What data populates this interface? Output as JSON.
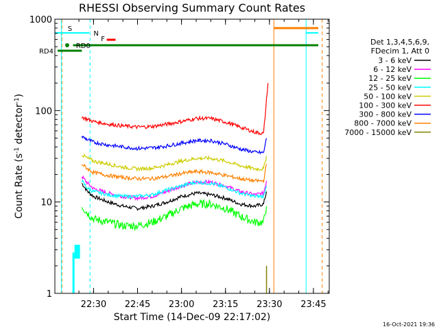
{
  "chart_data": {
    "type": "line",
    "title": "RHESSI Observing Summary Count Rates",
    "xlabel": "Start Time (14-Dec-09 22:17:02)",
    "ylabel": "Count Rate (s",
    "ylabel_sup": "-1",
    "ylabel_mid": " detector",
    "ylabel_end": ")",
    "y_scale": "log",
    "ylim": [
      1,
      1000
    ],
    "xlim_minutes": [
      22.28,
      23.84
    ],
    "xlim": [
      "22:17:00",
      "23:50:30"
    ],
    "x_ticks": [
      {
        "label": "22:30",
        "minute": 30
      },
      {
        "label": "22:45",
        "minute": 45
      },
      {
        "label": "23:00",
        "minute": 60
      },
      {
        "label": "23:15",
        "minute": 75
      },
      {
        "label": "23:30",
        "minute": 90
      },
      {
        "label": "23:45",
        "minute": 105
      }
    ],
    "y_ticks": [
      {
        "label": "1",
        "value": 1
      },
      {
        "label": "10",
        "value": 10
      },
      {
        "label": "100",
        "value": 100
      },
      {
        "label": "1000",
        "value": 1000
      }
    ],
    "legend": {
      "position": "right",
      "header_line1": "Det 1,3,4,5,6,9,",
      "header_line2": "FDecim 1, Att 0",
      "entries": [
        {
          "label": "3 - 6 keV",
          "color": "#000000"
        },
        {
          "label": "6 - 12 keV",
          "color": "#ff00ff"
        },
        {
          "label": "12 - 25 keV",
          "color": "#00ff00"
        },
        {
          "label": "25 - 50 keV",
          "color": "#00ffff"
        },
        {
          "label": "50 - 100 keV",
          "color": "#cccc00"
        },
        {
          "label": "100 - 300 keV",
          "color": "#ff0000"
        },
        {
          "label": "300 - 800 keV",
          "color": "#0000ff"
        },
        {
          "label": "800 - 7000 keV",
          "color": "#ff8000"
        },
        {
          "label": "7000 - 15000 keV",
          "color": "#808000"
        }
      ]
    },
    "flags": {
      "S": {
        "label": "S",
        "color": "#ff8000"
      },
      "N": {
        "label": "N",
        "color": "#00ffff"
      },
      "F": {
        "label": "F",
        "color": "#ff0000"
      },
      "RD0": {
        "label": "RD0",
        "color": "#008000"
      },
      "RD4": {
        "label": "RD4",
        "color": "#008000"
      }
    },
    "series": [
      {
        "name": "3 - 6 keV",
        "color": "#000000",
        "x": [
          26,
          28,
          30,
          35,
          40,
          45,
          50,
          55,
          60,
          65,
          70,
          75,
          80,
          85,
          88,
          89
        ],
        "y": [
          16,
          13,
          11.5,
          10,
          9,
          8.5,
          9,
          10,
          11.5,
          12.5,
          12,
          11,
          9.5,
          9,
          9.5,
          13
        ]
      },
      {
        "name": "6 - 12 keV",
        "color": "#ff00ff",
        "x": [
          26,
          28,
          30,
          35,
          40,
          45,
          50,
          55,
          60,
          65,
          70,
          75,
          80,
          85,
          88,
          89
        ],
        "y": [
          19,
          16,
          14,
          12.5,
          11.5,
          11,
          11.5,
          13,
          15,
          16.5,
          16.5,
          15,
          13,
          12,
          12.5,
          17
        ]
      },
      {
        "name": "12 - 25 keV",
        "color": "#00ff00",
        "x": [
          26,
          28,
          30,
          35,
          40,
          45,
          50,
          55,
          60,
          65,
          70,
          75,
          80,
          85,
          88,
          89
        ],
        "y": [
          9,
          7.5,
          6.5,
          6,
          5.5,
          5.5,
          6,
          7,
          8.5,
          9.5,
          9.5,
          8.5,
          7,
          6,
          6,
          9
        ]
      },
      {
        "name": "25 - 50 keV",
        "color": "#00ffff",
        "x": [
          26,
          28,
          30,
          35,
          40,
          45,
          50,
          55,
          60,
          65,
          70,
          75,
          80,
          85,
          88,
          89
        ],
        "y": [
          17,
          14,
          13,
          12,
          11.5,
          11.5,
          12,
          13.5,
          15,
          16.5,
          16,
          14.5,
          12.5,
          11.5,
          11.5,
          15
        ]
      },
      {
        "name": "50 - 100 keV",
        "color": "#cccc00",
        "x": [
          26,
          28,
          30,
          35,
          40,
          45,
          50,
          55,
          60,
          65,
          70,
          75,
          80,
          85,
          88,
          89
        ],
        "y": [
          33,
          30,
          28,
          26,
          24,
          23,
          23.5,
          25.5,
          28,
          30,
          30,
          28,
          25,
          23,
          23,
          32
        ]
      },
      {
        "name": "100 - 300 keV",
        "color": "#ff0000",
        "x": [
          26,
          28,
          30,
          35,
          40,
          45,
          50,
          55,
          60,
          65,
          70,
          75,
          80,
          85,
          88,
          89.5
        ],
        "y": [
          85,
          80,
          76,
          71,
          68,
          66,
          67,
          71,
          76,
          82,
          82,
          75,
          66,
          58,
          56,
          200
        ]
      },
      {
        "name": "300 - 800 keV",
        "color": "#0000ff",
        "x": [
          26,
          28,
          30,
          35,
          40,
          45,
          50,
          55,
          60,
          65,
          70,
          75,
          80,
          85,
          88,
          89
        ],
        "y": [
          52,
          48,
          45,
          42,
          40,
          38.5,
          39,
          41,
          44,
          47,
          47,
          43,
          38,
          35,
          34.5,
          50
        ]
      },
      {
        "name": "800 - 7000 keV",
        "color": "#ff8000",
        "x": [
          26,
          28,
          30,
          35,
          40,
          45,
          50,
          55,
          60,
          65,
          70,
          75,
          80,
          85,
          88,
          89
        ],
        "y": [
          26,
          23,
          21,
          19.5,
          18.5,
          18,
          18,
          19,
          20.5,
          21.5,
          21,
          19.5,
          18,
          17,
          17,
          26
        ]
      },
      {
        "name": "7000 - 15000 keV",
        "color": "#808000",
        "x": [
          89,
          89
        ],
        "y": [
          1,
          2
        ]
      }
    ]
  },
  "footer": {
    "timestamp": "16-Oct-2021 19:36"
  }
}
